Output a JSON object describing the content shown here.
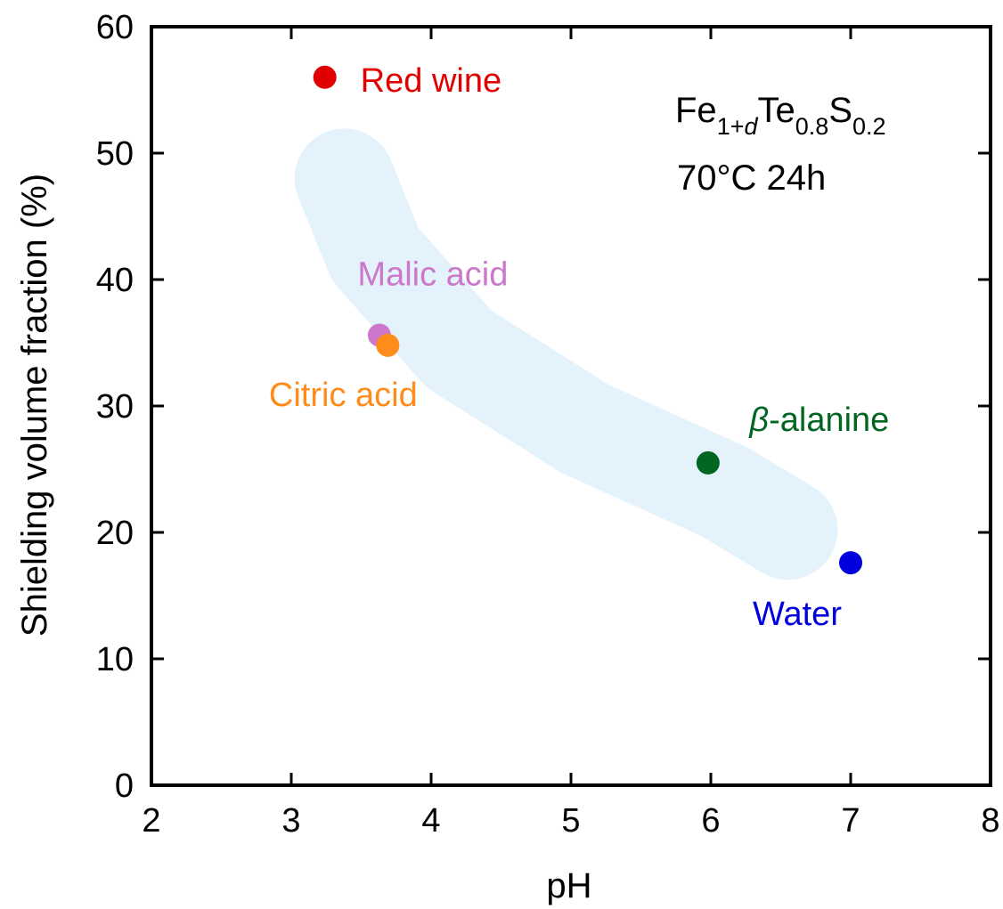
{
  "chart_data": {
    "type": "scatter",
    "xlabel": "pH",
    "ylabel": "Shielding volume fraction (%)",
    "xlim": [
      2,
      8
    ],
    "ylim": [
      0,
      60
    ],
    "xticks": [
      2,
      3,
      4,
      5,
      6,
      7,
      8
    ],
    "yticks": [
      0,
      10,
      20,
      30,
      40,
      50,
      60
    ],
    "x_tick_labels": [
      "2",
      "3",
      "4",
      "5",
      "6",
      "7",
      "8"
    ],
    "y_tick_labels": [
      "0",
      "10",
      "20",
      "30",
      "40",
      "50",
      "60"
    ],
    "grid": false,
    "points": [
      {
        "label": "Red wine",
        "x": 3.24,
        "y": 56.0,
        "color": "#e00000"
      },
      {
        "label": "Malic acid",
        "x": 3.63,
        "y": 35.6,
        "color": "#cc77cc"
      },
      {
        "label": "Citric acid",
        "x": 3.69,
        "y": 34.8,
        "color": "#ff8c1a"
      },
      {
        "label": "β-alanine",
        "x": 5.98,
        "y": 25.5,
        "color": "#006622"
      },
      {
        "label": "Water",
        "x": 7.0,
        "y": 17.6,
        "color": "#0000dd"
      }
    ],
    "trend_band": {
      "color": "#e4f2fc",
      "path": [
        [
          3.38,
          48
        ],
        [
          3.6,
          42
        ],
        [
          4.2,
          34.5
        ],
        [
          5.1,
          28.2
        ],
        [
          6.1,
          23.2
        ],
        [
          6.55,
          20.2
        ]
      ]
    },
    "annotation": {
      "formula": {
        "base1": "Fe",
        "sub1a": "1+",
        "sub1b": "d",
        "base2": "Te",
        "sub2": "0.8",
        "base3": "S",
        "sub3": "0.2"
      },
      "condition": "70°C 24h"
    }
  }
}
